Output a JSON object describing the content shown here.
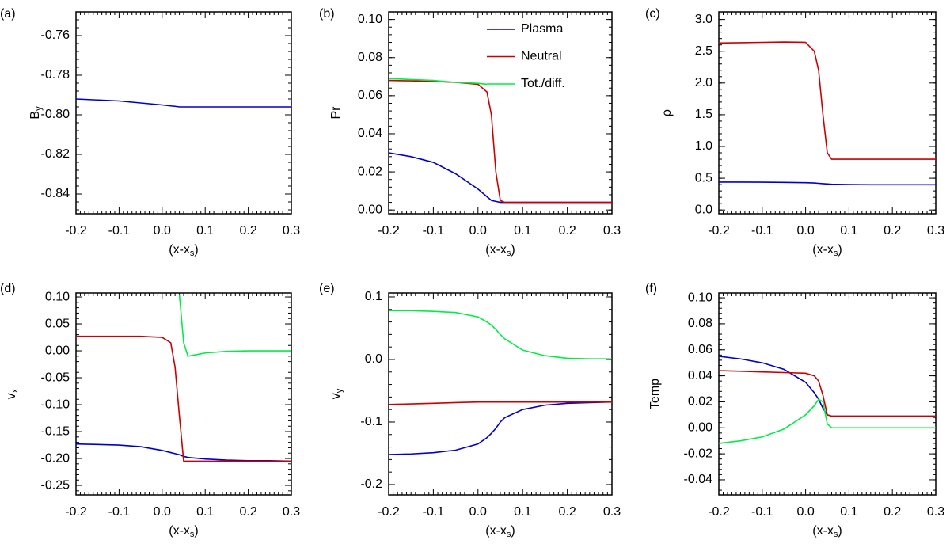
{
  "chart_data": [
    {
      "type": "line",
      "label": "(a)",
      "ylabel": "B",
      "ylabel_sub": "y",
      "xlabel": "(x-x",
      "xlabel_sub": "s",
      "xlabel_end": ")",
      "x": [
        -0.2,
        -0.15,
        -0.1,
        -0.05,
        0,
        0.02,
        0.03,
        0.04,
        0.05,
        0.06,
        0.1,
        0.15,
        0.2,
        0.25,
        0.3
      ],
      "xlim": [
        -0.2,
        0.3
      ],
      "xticks": [
        -0.2,
        -0.1,
        {
          "value": 0,
          "label": "0.0"
        },
        0.1,
        0.2,
        0.3
      ],
      "ylim": [
        -0.85,
        -0.748
      ],
      "yticks": [
        -0.76,
        -0.78,
        {
          "value": -0.8,
          "label": "-0.80"
        },
        -0.82,
        -0.84
      ],
      "series": [
        {
          "color": "#0000cc",
          "values": [
            -0.792,
            -0.7925,
            -0.793,
            -0.794,
            -0.795,
            -0.7955,
            -0.7957,
            -0.796,
            -0.796,
            -0.796,
            -0.796,
            -0.796,
            -0.796,
            -0.796,
            -0.796
          ]
        }
      ]
    },
    {
      "type": "line",
      "label": "(b)",
      "ylabel": "Pr",
      "xlabel": "(x-x",
      "xlabel_sub": "s",
      "xlabel_end": ")",
      "x": [
        -0.2,
        -0.15,
        -0.1,
        -0.05,
        0,
        0.02,
        0.03,
        0.04,
        0.05,
        0.06,
        0.1,
        0.15,
        0.2,
        0.25,
        0.3
      ],
      "xlim": [
        -0.2,
        0.3
      ],
      "xticks": [
        -0.2,
        -0.1,
        {
          "value": 0,
          "label": "0.0"
        },
        0.1,
        0.2,
        0.3
      ],
      "ylim": [
        -0.002,
        0.104
      ],
      "yticks": [
        {
          "value": 0,
          "label": "0.00"
        },
        0.02,
        0.04,
        0.06,
        0.08,
        {
          "value": 0.1,
          "label": "0.10"
        }
      ],
      "legend": "upper right",
      "series": [
        {
          "name": "Plasma",
          "color": "#0000cc",
          "values": [
            0.03,
            0.028,
            0.025,
            0.019,
            0.011,
            0.007,
            0.005,
            0.0045,
            0.004,
            0.004,
            0.004,
            0.004,
            0.004,
            0.004,
            0.004
          ]
        },
        {
          "name": "Neutral",
          "color": "#cc0000",
          "values": [
            0.068,
            0.0678,
            0.0675,
            0.067,
            0.066,
            0.062,
            0.05,
            0.02,
            0.005,
            0.004,
            0.004,
            0.004,
            0.004,
            0.004,
            0.004
          ]
        },
        {
          "name": "Tot./diff.",
          "color": "#00ee44",
          "values": [
            0.069,
            0.0685,
            0.068,
            0.067,
            0.0665,
            0.066,
            null,
            null,
            null,
            null,
            null,
            null,
            null,
            null,
            null
          ]
        }
      ]
    },
    {
      "type": "line",
      "label": "(c)",
      "ylabel": "ρ",
      "xlabel": "(x-x",
      "xlabel_sub": "s",
      "xlabel_end": ")",
      "x": [
        -0.2,
        -0.15,
        -0.1,
        -0.05,
        0,
        0.02,
        0.03,
        0.04,
        0.05,
        0.06,
        0.1,
        0.15,
        0.2,
        0.25,
        0.3
      ],
      "xlim": [
        -0.2,
        0.3
      ],
      "xticks": [
        -0.2,
        -0.1,
        {
          "value": 0,
          "label": "0.0"
        },
        0.1,
        0.2,
        0.3
      ],
      "ylim": [
        -0.06,
        3.12
      ],
      "yticks": [
        {
          "value": 0,
          "label": "0.0"
        },
        0.5,
        {
          "value": 1,
          "label": "1.0"
        },
        1.5,
        {
          "value": 2,
          "label": "2.0"
        },
        2.5,
        {
          "value": 3,
          "label": "3.0"
        }
      ],
      "series": [
        {
          "color": "#0000cc",
          "values": [
            0.44,
            0.44,
            0.438,
            0.435,
            0.43,
            0.425,
            0.42,
            0.415,
            0.41,
            0.405,
            0.4,
            0.398,
            0.397,
            0.397,
            0.397
          ]
        },
        {
          "color": "#cc0000",
          "values": [
            2.63,
            2.635,
            2.64,
            2.645,
            2.64,
            2.5,
            2.2,
            1.5,
            0.9,
            0.8,
            0.8,
            0.8,
            0.8,
            0.8,
            0.8
          ]
        }
      ]
    },
    {
      "type": "line",
      "label": "(d)",
      "ylabel": "v",
      "ylabel_sub": "x",
      "xlabel": "(x-x",
      "xlabel_sub": "s",
      "xlabel_end": ")",
      "x": [
        -0.2,
        -0.15,
        -0.1,
        -0.05,
        0,
        0.02,
        0.03,
        0.04,
        0.05,
        0.06,
        0.1,
        0.15,
        0.2,
        0.25,
        0.3
      ],
      "xlim": [
        -0.2,
        0.3
      ],
      "xticks": [
        -0.2,
        -0.1,
        {
          "value": 0,
          "label": "0.0"
        },
        0.1,
        0.2,
        0.3
      ],
      "ylim": [
        -0.2676,
        0.1074
      ],
      "yticks": [
        {
          "value": 0.1,
          "label": "0.10"
        },
        0.05,
        {
          "value": 0,
          "label": "0.00"
        },
        -0.05,
        {
          "value": -0.1,
          "label": "-0.10"
        },
        -0.15,
        {
          "value": -0.2,
          "label": "-0.20"
        },
        -0.25
      ],
      "series": [
        {
          "color": "#0000cc",
          "values": [
            -0.173,
            -0.174,
            -0.175,
            -0.178,
            -0.185,
            -0.189,
            -0.191,
            -0.193,
            -0.196,
            -0.198,
            -0.201,
            -0.203,
            -0.204,
            -0.204,
            -0.205
          ]
        },
        {
          "color": "#cc0000",
          "values": [
            0.027,
            0.027,
            0.027,
            0.027,
            0.025,
            0.015,
            -0.03,
            -0.12,
            -0.205,
            -0.205,
            -0.205,
            -0.205,
            -0.205,
            -0.205,
            -0.205
          ]
        },
        {
          "color": "#00ee44",
          "values": [
            null,
            null,
            null,
            null,
            null,
            null,
            null,
            0.105,
            0.015,
            -0.01,
            -0.004,
            -0.001,
            0,
            0,
            0
          ]
        }
      ]
    },
    {
      "type": "line",
      "label": "(e)",
      "ylabel": "v",
      "ylabel_sub": "y",
      "xlabel": "(x-x",
      "xlabel_sub": "s",
      "xlabel_end": ")",
      "x": [
        -0.2,
        -0.15,
        -0.1,
        -0.05,
        0,
        0.02,
        0.03,
        0.04,
        0.05,
        0.06,
        0.1,
        0.15,
        0.2,
        0.25,
        0.3
      ],
      "xlim": [
        -0.2,
        0.3
      ],
      "xticks": [
        -0.2,
        -0.1,
        {
          "value": 0,
          "label": "0.0"
        },
        0.1,
        0.2,
        0.3
      ],
      "ylim": [
        -0.2165,
        0.1063
      ],
      "yticks": [
        0.1,
        {
          "value": 0,
          "label": "0.0"
        },
        -0.1,
        -0.2
      ],
      "series": [
        {
          "color": "#0000cc",
          "values": [
            -0.152,
            -0.151,
            -0.149,
            -0.145,
            -0.135,
            -0.125,
            -0.118,
            -0.11,
            -0.1,
            -0.093,
            -0.08,
            -0.073,
            -0.07,
            -0.069,
            -0.068
          ]
        },
        {
          "color": "#cc0000",
          "values": [
            -0.072,
            -0.071,
            -0.07,
            -0.069,
            -0.068,
            -0.068,
            -0.068,
            -0.068,
            -0.068,
            -0.068,
            -0.068,
            -0.068,
            -0.068,
            -0.068,
            -0.068
          ]
        },
        {
          "color": "#00ee44",
          "values": [
            0.078,
            0.078,
            0.077,
            0.075,
            0.068,
            0.06,
            0.055,
            0.048,
            0.04,
            0.033,
            0.015,
            0.006,
            0.002,
            0.001,
            0.001
          ]
        }
      ]
    },
    {
      "type": "line",
      "label": "(f)",
      "ylabel": "Temp",
      "xlabel": "(x-x",
      "xlabel_sub": "s",
      "xlabel_end": ")",
      "x": [
        -0.2,
        -0.15,
        -0.1,
        -0.05,
        0,
        0.02,
        0.03,
        0.04,
        0.05,
        0.06,
        0.1,
        0.15,
        0.2,
        0.25,
        0.3
      ],
      "xlim": [
        -0.2,
        0.3
      ],
      "xticks": [
        -0.2,
        -0.1,
        {
          "value": 0,
          "label": "0.0"
        },
        0.1,
        0.2,
        0.3
      ],
      "ylim": [
        -0.0516,
        0.1037
      ],
      "yticks": [
        {
          "value": 0.1,
          "label": "0.10"
        },
        0.08,
        0.06,
        0.04,
        0.02,
        {
          "value": 0,
          "label": "0.00"
        },
        -0.02,
        -0.04
      ],
      "series": [
        {
          "color": "#0000cc",
          "values": [
            0.055,
            0.053,
            0.05,
            0.045,
            0.035,
            0.027,
            0.022,
            0.015,
            0.01,
            0.009,
            0.009,
            0.009,
            0.009,
            0.009,
            0.009
          ]
        },
        {
          "color": "#cc0000",
          "values": [
            0.044,
            0.0435,
            0.043,
            0.0425,
            0.042,
            0.04,
            0.036,
            0.025,
            0.01,
            0.009,
            0.009,
            0.009,
            0.009,
            0.009,
            0.009
          ]
        },
        {
          "color": "#00ee44",
          "values": [
            -0.012,
            -0.01,
            -0.007,
            -0.001,
            0.01,
            0.017,
            0.022,
            0.02,
            0.003,
            0,
            0,
            0,
            0,
            0,
            0
          ]
        }
      ]
    }
  ]
}
